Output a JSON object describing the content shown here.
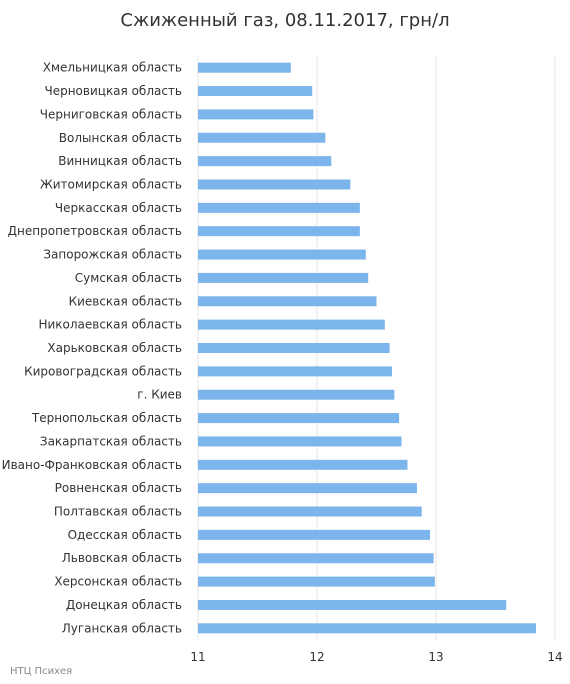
{
  "chart_data": {
    "type": "bar",
    "orientation": "horizontal",
    "title": "Сжиженный газ, 08.11.2017, грн/л",
    "categories": [
      "Хмельницкая область",
      "Черновицкая область",
      "Черниговская область",
      "Волынская область",
      "Винницкая область",
      "Житомирская область",
      "Черкасская область",
      "Днепропетровская область",
      "Запорожская область",
      "Сумская область",
      "Киевская область",
      "Николаевская область",
      "Харьковская область",
      "Кировоградская область",
      "г. Киев",
      "Тернопольская область",
      "Закарпатская область",
      "Ивано-Франковская область",
      "Ровненская область",
      "Полтавская область",
      "Одесская область",
      "Львовская область",
      "Херсонская область",
      "Донецкая область",
      "Луганская область"
    ],
    "values": [
      11.78,
      11.96,
      11.97,
      12.07,
      12.12,
      12.28,
      12.36,
      12.36,
      12.41,
      12.43,
      12.5,
      12.57,
      12.61,
      12.63,
      12.65,
      12.69,
      12.71,
      12.76,
      12.84,
      12.88,
      12.95,
      12.98,
      12.99,
      13.59,
      13.84
    ],
    "xlim": [
      11,
      14
    ],
    "xticks": [
      "11",
      "12",
      "13",
      "14"
    ],
    "grid": true,
    "colors": {
      "bar": "#7cb5ec",
      "grid": "#e6e6e6"
    }
  },
  "footer": {
    "credit": "НТЦ Психея"
  }
}
